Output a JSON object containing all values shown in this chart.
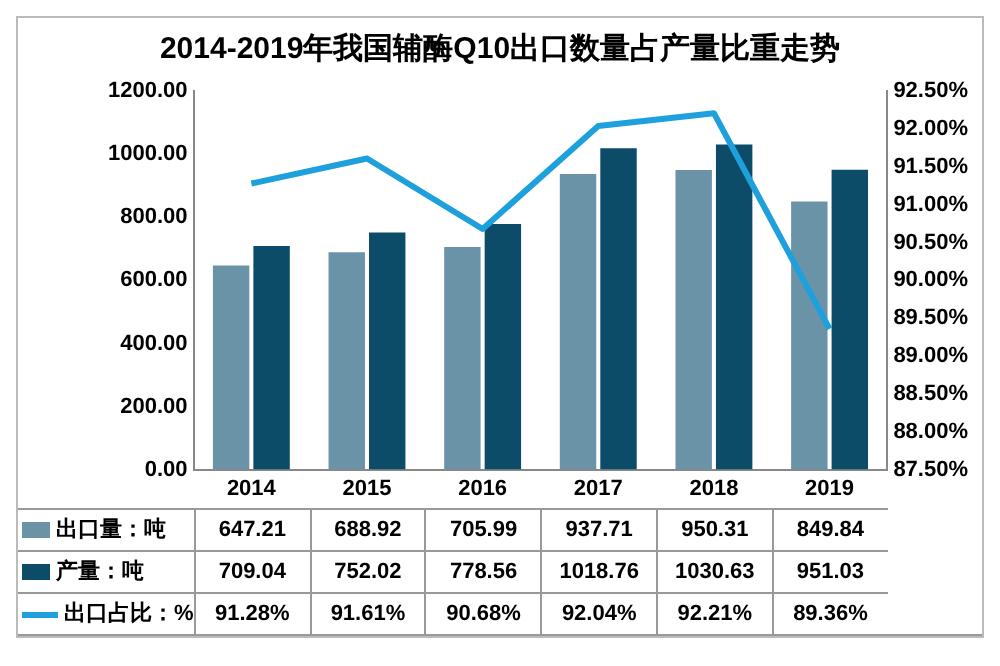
{
  "chart_data": {
    "type": "bar",
    "title": "2014-2019年我国辅酶Q10出口数量占产量比重走势",
    "categories": [
      "2014",
      "2015",
      "2016",
      "2017",
      "2018",
      "2019"
    ],
    "series": [
      {
        "name": "出口量：吨",
        "color": "#6b93a8",
        "values": [
          647.21,
          688.92,
          705.99,
          937.71,
          950.31,
          849.84
        ]
      },
      {
        "name": "产量：吨",
        "color": "#0d4c68",
        "values": [
          709.04,
          752.02,
          778.56,
          1018.76,
          1030.63,
          951.03
        ]
      },
      {
        "name": "出口占比：%",
        "type": "line",
        "axis": "y2",
        "color": "#1ea0dc",
        "marker": "none",
        "values": [
          91.28,
          91.61,
          90.68,
          92.04,
          92.21,
          89.36
        ],
        "value_labels": [
          "91.28%",
          "91.61%",
          "90.68%",
          "92.04%",
          "92.21%",
          "89.36%"
        ]
      }
    ],
    "ylim": [
      0,
      1200
    ],
    "yticks": [
      {
        "value": 0,
        "label": "0.00"
      },
      {
        "value": 200,
        "label": "200.00"
      },
      {
        "value": 400,
        "label": "400.00"
      },
      {
        "value": 600,
        "label": "600.00"
      },
      {
        "value": 800,
        "label": "800.00"
      },
      {
        "value": 1000,
        "label": "1000.00"
      },
      {
        "value": 1200,
        "label": "1200.00"
      }
    ],
    "y2lim": [
      87.5,
      92.5
    ],
    "y2ticks": [
      {
        "value": 87.5,
        "label": "87.50%"
      },
      {
        "value": 88,
        "label": "88.00%"
      },
      {
        "value": 88.5,
        "label": "88.50%"
      },
      {
        "value": 89,
        "label": "89.00%"
      },
      {
        "value": 89.5,
        "label": "89.50%"
      },
      {
        "value": 90,
        "label": "90.00%"
      },
      {
        "value": 90.5,
        "label": "90.50%"
      },
      {
        "value": 91,
        "label": "91.00%"
      },
      {
        "value": 91.5,
        "label": "91.50%"
      },
      {
        "value": 92,
        "label": "92.00%"
      },
      {
        "value": 92.5,
        "label": "92.50%"
      }
    ],
    "grid": false,
    "legend": "bottom",
    "data_labels": true
  }
}
